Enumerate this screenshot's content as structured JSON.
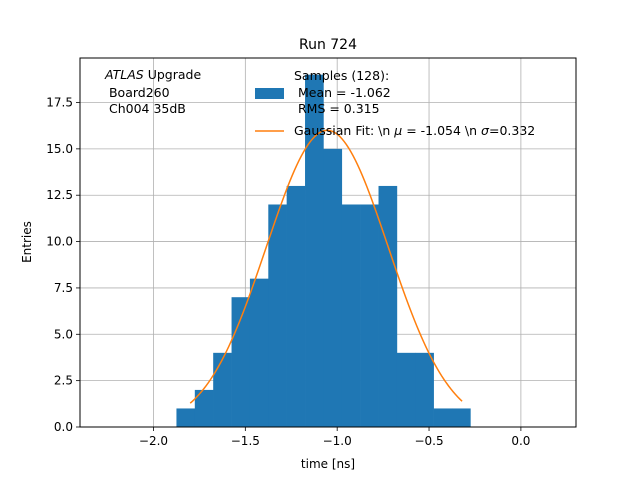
{
  "chart_data": {
    "type": "bar",
    "title": "Run 724",
    "xlabel": "time [ns]",
    "ylabel": "Entries",
    "xlim": [
      -2.4,
      0.3
    ],
    "ylim": [
      0,
      19.9
    ],
    "x_ticks": [
      -2.0,
      -1.5,
      -1.0,
      -0.5,
      0.0
    ],
    "x_tick_labels": [
      "−2.0",
      "−1.5",
      "−1.0",
      "−0.5",
      "0.0"
    ],
    "y_ticks": [
      0,
      2.5,
      5,
      7.5,
      10,
      12.5,
      15,
      17.5
    ],
    "y_tick_labels": [
      "0.0",
      "2.5",
      "5.0",
      "7.5",
      "10.0",
      "12.5",
      "15.0",
      "17.5"
    ],
    "grid": true,
    "annotation": {
      "italic": "ATLAS",
      "rest": " Upgrade",
      "line2": " Board260",
      "line3": " Ch004 35dB"
    },
    "histogram": {
      "name": "Samples (128):",
      "name_line2": " Mean = -1.062",
      "name_line3": " RMS = 0.315",
      "color": "#1f77b4",
      "bin_edges": [
        -1.875,
        -1.775,
        -1.675,
        -1.575,
        -1.475,
        -1.375,
        -1.275,
        -1.175,
        -1.075,
        -0.975,
        -0.875,
        -0.775,
        -0.675,
        -0.575,
        -0.475,
        -0.375,
        -0.275
      ],
      "counts": [
        1,
        2,
        4,
        7,
        8,
        12,
        13,
        19,
        15,
        12,
        12,
        13,
        4,
        4,
        1,
        1
      ]
    },
    "fit": {
      "name": "Gaussian Fit: \\n ",
      "name_mu": "μ",
      "name_mid": " = -1.054 \\n ",
      "name_sigma": "σ",
      "name_end": "=0.332",
      "color": "#ff7f0e",
      "mean": -1.054,
      "sigma": 0.332,
      "amplitude": 16.0,
      "x_range": [
        -1.8,
        -0.32
      ]
    },
    "legend_placement": "top-center"
  }
}
